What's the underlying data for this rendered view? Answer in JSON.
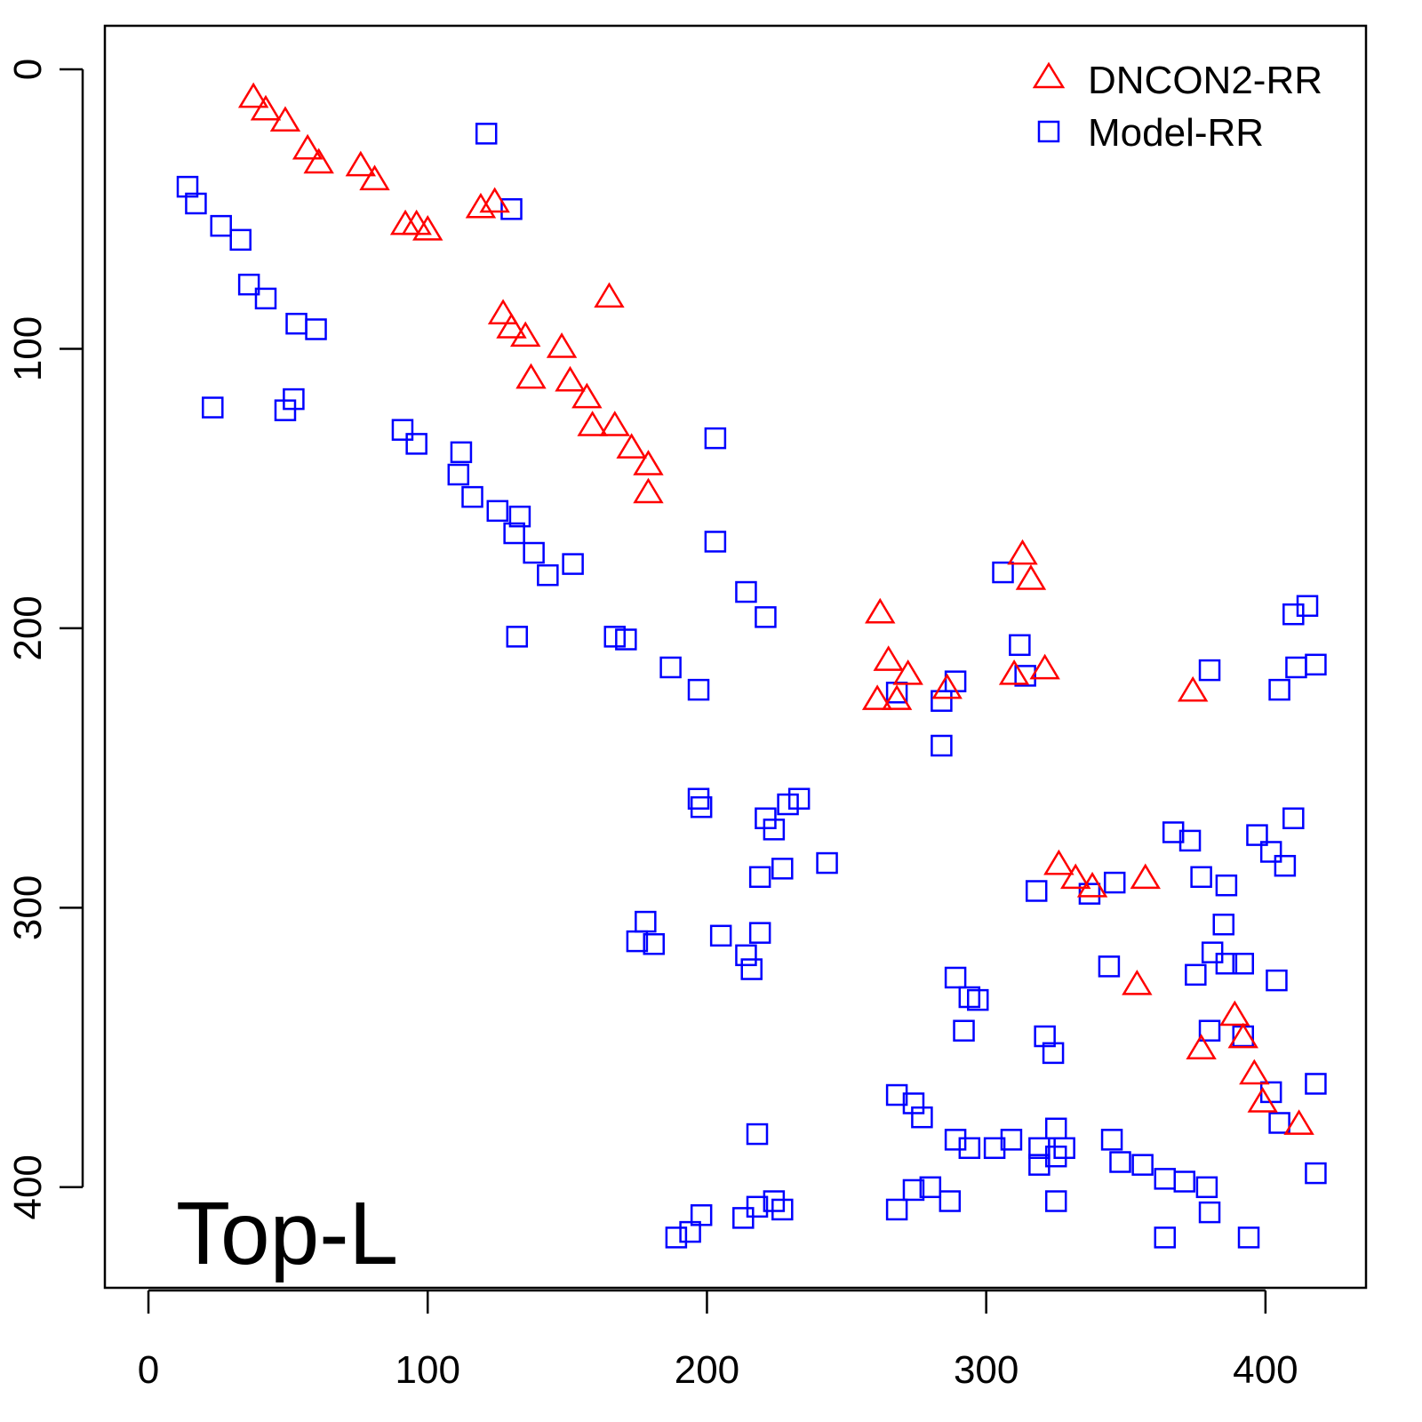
{
  "chart_data": {
    "type": "scatter",
    "title": "",
    "xlabel": "",
    "ylabel": "",
    "xlim": [
      -15.6,
      436
    ],
    "ylim": [
      436,
      -15.6
    ],
    "x_ticks": [
      "0",
      "100",
      "200",
      "300",
      "400"
    ],
    "y_ticks": [
      "0",
      "100",
      "200",
      "300",
      "400"
    ],
    "x_tick_values": [
      0,
      100,
      200,
      300,
      400
    ],
    "y_tick_values": [
      0,
      100,
      200,
      300,
      400
    ],
    "grid": false,
    "legend_position": "top-right",
    "annotation": "Top-L",
    "series": [
      {
        "name": "DNCON2-RR",
        "marker": "triangle",
        "color": "#ff0000",
        "points": [
          [
            37.6,
            10.5
          ],
          [
            42,
            15
          ],
          [
            49,
            19
          ],
          [
            57,
            29
          ],
          [
            61,
            34
          ],
          [
            76,
            35
          ],
          [
            81,
            40
          ],
          [
            92,
            56
          ],
          [
            96,
            56
          ],
          [
            100,
            58
          ],
          [
            119,
            50
          ],
          [
            124,
            48
          ],
          [
            165,
            82
          ],
          [
            127,
            88
          ],
          [
            130,
            93
          ],
          [
            135,
            96
          ],
          [
            137,
            111
          ],
          [
            148,
            100
          ],
          [
            151,
            112
          ],
          [
            157,
            118
          ],
          [
            159,
            128
          ],
          [
            167,
            128
          ],
          [
            173,
            136
          ],
          [
            179,
            142
          ],
          [
            179,
            152
          ],
          [
            313,
            174
          ],
          [
            316,
            183
          ],
          [
            262,
            195
          ],
          [
            265,
            212
          ],
          [
            272,
            217
          ],
          [
            261,
            226
          ],
          [
            268,
            226
          ],
          [
            286,
            222
          ],
          [
            310,
            217
          ],
          [
            321,
            215
          ],
          [
            374,
            223
          ],
          [
            326,
            285
          ],
          [
            332,
            290
          ],
          [
            338,
            293
          ],
          [
            357,
            290
          ],
          [
            354,
            328
          ],
          [
            389,
            339
          ],
          [
            392,
            347
          ],
          [
            377,
            351
          ],
          [
            396,
            360
          ],
          [
            399,
            370
          ],
          [
            412,
            378
          ]
        ]
      },
      {
        "name": "Model-RR",
        "marker": "square",
        "color": "#0000ff",
        "points": [
          [
            14,
            42
          ],
          [
            17,
            48
          ],
          [
            26,
            56
          ],
          [
            33,
            61
          ],
          [
            36,
            77
          ],
          [
            42,
            82
          ],
          [
            53,
            91
          ],
          [
            60,
            93
          ],
          [
            23,
            121
          ],
          [
            49,
            122
          ],
          [
            52,
            118
          ],
          [
            121,
            23
          ],
          [
            130,
            50
          ],
          [
            91,
            129
          ],
          [
            96,
            134
          ],
          [
            112,
            137
          ],
          [
            111,
            145
          ],
          [
            116,
            153
          ],
          [
            125,
            158
          ],
          [
            133,
            160
          ],
          [
            131,
            166
          ],
          [
            138,
            173
          ],
          [
            143,
            181
          ],
          [
            152,
            177
          ],
          [
            132,
            203
          ],
          [
            203,
            132
          ],
          [
            203,
            169
          ],
          [
            214,
            187
          ],
          [
            221,
            196
          ],
          [
            167,
            203
          ],
          [
            171,
            204
          ],
          [
            187,
            214
          ],
          [
            197,
            222
          ],
          [
            197,
            261
          ],
          [
            198,
            264
          ],
          [
            221,
            268
          ],
          [
            224,
            272
          ],
          [
            229,
            263
          ],
          [
            233,
            261
          ],
          [
            219,
            289
          ],
          [
            227,
            286
          ],
          [
            243,
            284
          ],
          [
            178,
            305
          ],
          [
            181,
            313
          ],
          [
            175,
            312
          ],
          [
            205,
            310
          ],
          [
            214,
            317
          ],
          [
            219,
            309
          ],
          [
            216,
            322
          ],
          [
            194,
            416
          ],
          [
            189,
            418
          ],
          [
            198,
            410
          ],
          [
            213,
            411
          ],
          [
            218,
            407
          ],
          [
            224,
            405
          ],
          [
            227,
            408
          ],
          [
            218,
            381
          ],
          [
            268,
            223
          ],
          [
            284,
            242
          ],
          [
            289,
            219
          ],
          [
            284,
            226
          ],
          [
            306,
            180
          ],
          [
            312,
            206
          ],
          [
            314,
            217
          ],
          [
            289,
            325
          ],
          [
            294,
            332
          ],
          [
            297,
            333
          ],
          [
            292,
            344
          ],
          [
            321,
            346
          ],
          [
            324,
            352
          ],
          [
            268,
            367
          ],
          [
            274,
            370
          ],
          [
            277,
            375
          ],
          [
            289,
            383
          ],
          [
            294,
            386
          ],
          [
            303,
            386
          ],
          [
            309,
            383
          ],
          [
            319,
            386
          ],
          [
            325,
            379
          ],
          [
            328,
            386
          ],
          [
            319,
            392
          ],
          [
            325,
            405
          ],
          [
            268,
            408
          ],
          [
            274,
            401
          ],
          [
            280,
            400
          ],
          [
            287,
            405
          ],
          [
            325,
            389
          ],
          [
            345,
            383
          ],
          [
            348,
            391
          ],
          [
            356,
            392
          ],
          [
            364,
            397
          ],
          [
            371,
            398
          ],
          [
            379,
            400
          ],
          [
            380,
            409
          ],
          [
            364,
            418
          ],
          [
            394,
            418
          ],
          [
            418,
            395
          ],
          [
            418,
            363
          ],
          [
            402,
            366
          ],
          [
            405,
            377
          ],
          [
            367,
            273
          ],
          [
            373,
            276
          ],
          [
            377,
            289
          ],
          [
            386,
            292
          ],
          [
            385,
            306
          ],
          [
            381,
            316
          ],
          [
            386,
            320
          ],
          [
            375,
            324
          ],
          [
            392,
            320
          ],
          [
            404,
            326
          ],
          [
            380,
            344
          ],
          [
            392,
            346
          ],
          [
            397,
            274
          ],
          [
            402,
            280
          ],
          [
            407,
            285
          ],
          [
            410,
            268
          ],
          [
            380,
            215
          ],
          [
            405,
            222
          ],
          [
            411,
            214
          ],
          [
            418,
            213
          ],
          [
            410,
            195
          ],
          [
            415,
            192
          ],
          [
            344,
            321
          ],
          [
            346,
            291
          ],
          [
            337,
            295
          ],
          [
            318,
            294
          ]
        ]
      }
    ]
  }
}
